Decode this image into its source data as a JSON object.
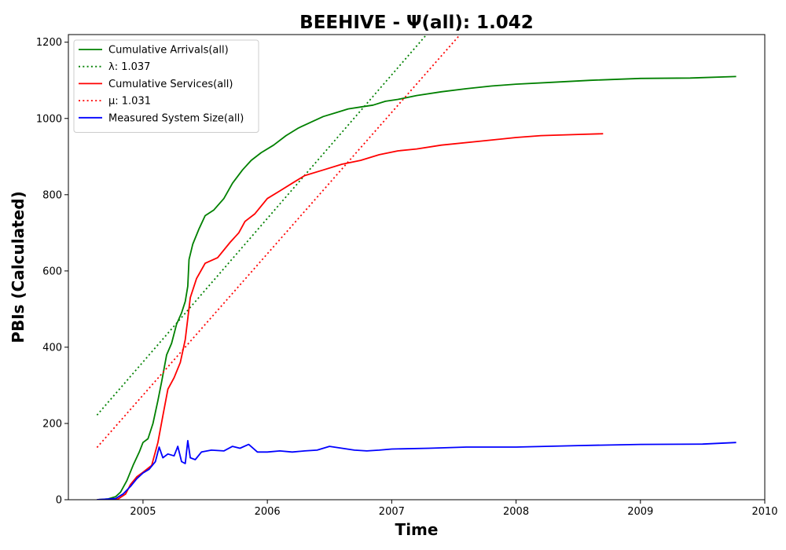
{
  "chart_data": {
    "type": "line",
    "title": "BEEHIVE -  Ψ(all): 1.042",
    "xlabel": "Time",
    "ylabel": "PBIs (Calculated)",
    "xlim": [
      2004.4,
      2010.0
    ],
    "ylim": [
      0,
      1220
    ],
    "xticks": [
      2005,
      2006,
      2007,
      2008,
      2009,
      2010
    ],
    "yticks": [
      0,
      200,
      400,
      600,
      800,
      1000,
      1200
    ],
    "grid": false,
    "legend_position": "top-left",
    "series": [
      {
        "name": "Cumulative Arrivals(all)",
        "color": "#008000",
        "style": "solid",
        "points": [
          [
            2004.63,
            0
          ],
          [
            2004.72,
            2
          ],
          [
            2004.78,
            8
          ],
          [
            2004.82,
            20
          ],
          [
            2004.87,
            50
          ],
          [
            2004.92,
            90
          ],
          [
            2004.97,
            125
          ],
          [
            2005.0,
            150
          ],
          [
            2005.04,
            160
          ],
          [
            2005.08,
            200
          ],
          [
            2005.12,
            260
          ],
          [
            2005.15,
            310
          ],
          [
            2005.19,
            380
          ],
          [
            2005.23,
            410
          ],
          [
            2005.27,
            460
          ],
          [
            2005.31,
            490
          ],
          [
            2005.34,
            520
          ],
          [
            2005.36,
            560
          ],
          [
            2005.37,
            630
          ],
          [
            2005.4,
            670
          ],
          [
            2005.45,
            710
          ],
          [
            2005.5,
            745
          ],
          [
            2005.57,
            760
          ],
          [
            2005.65,
            790
          ],
          [
            2005.72,
            830
          ],
          [
            2005.8,
            865
          ],
          [
            2005.87,
            890
          ],
          [
            2005.95,
            910
          ],
          [
            2006.05,
            930
          ],
          [
            2006.15,
            955
          ],
          [
            2006.25,
            975
          ],
          [
            2006.35,
            990
          ],
          [
            2006.45,
            1005
          ],
          [
            2006.55,
            1015
          ],
          [
            2006.65,
            1025
          ],
          [
            2006.75,
            1030
          ],
          [
            2006.85,
            1035
          ],
          [
            2006.95,
            1045
          ],
          [
            2007.05,
            1050
          ],
          [
            2007.2,
            1060
          ],
          [
            2007.4,
            1070
          ],
          [
            2007.6,
            1078
          ],
          [
            2007.8,
            1085
          ],
          [
            2008.0,
            1090
          ],
          [
            2008.3,
            1095
          ],
          [
            2008.6,
            1100
          ],
          [
            2009.0,
            1105
          ],
          [
            2009.4,
            1106
          ],
          [
            2009.77,
            1110
          ]
        ]
      },
      {
        "name": "λ: 1.037",
        "color": "#008000",
        "style": "dotted",
        "points": [
          [
            2004.63,
            222
          ],
          [
            2007.28,
            1220
          ]
        ]
      },
      {
        "name": "Cumulative Services(all)",
        "color": "#ff0000",
        "style": "solid",
        "points": [
          [
            2004.63,
            0
          ],
          [
            2004.8,
            2
          ],
          [
            2004.86,
            15
          ],
          [
            2004.9,
            40
          ],
          [
            2004.95,
            60
          ],
          [
            2005.0,
            72
          ],
          [
            2005.07,
            90
          ],
          [
            2005.12,
            150
          ],
          [
            2005.16,
            220
          ],
          [
            2005.2,
            290
          ],
          [
            2005.25,
            320
          ],
          [
            2005.3,
            360
          ],
          [
            2005.34,
            420
          ],
          [
            2005.38,
            530
          ],
          [
            2005.43,
            580
          ],
          [
            2005.5,
            620
          ],
          [
            2005.6,
            635
          ],
          [
            2005.7,
            675
          ],
          [
            2005.77,
            700
          ],
          [
            2005.82,
            730
          ],
          [
            2005.9,
            750
          ],
          [
            2006.0,
            790
          ],
          [
            2006.1,
            810
          ],
          [
            2006.2,
            830
          ],
          [
            2006.3,
            850
          ],
          [
            2006.45,
            865
          ],
          [
            2006.6,
            880
          ],
          [
            2006.75,
            890
          ],
          [
            2006.9,
            905
          ],
          [
            2007.05,
            915
          ],
          [
            2007.2,
            920
          ],
          [
            2007.4,
            930
          ],
          [
            2007.7,
            940
          ],
          [
            2008.0,
            950
          ],
          [
            2008.2,
            955
          ],
          [
            2008.5,
            958
          ],
          [
            2008.7,
            960
          ]
        ]
      },
      {
        "name": "μ: 1.031",
        "color": "#ff0000",
        "style": "dotted",
        "points": [
          [
            2004.63,
            137
          ],
          [
            2007.55,
            1220
          ]
        ]
      },
      {
        "name": "Measured System Size(all)",
        "color": "#0000ff",
        "style": "solid",
        "points": [
          [
            2004.63,
            0
          ],
          [
            2004.78,
            3
          ],
          [
            2004.84,
            15
          ],
          [
            2004.9,
            35
          ],
          [
            2004.95,
            55
          ],
          [
            2005.0,
            70
          ],
          [
            2005.05,
            80
          ],
          [
            2005.1,
            100
          ],
          [
            2005.13,
            138
          ],
          [
            2005.16,
            110
          ],
          [
            2005.2,
            120
          ],
          [
            2005.25,
            115
          ],
          [
            2005.28,
            140
          ],
          [
            2005.31,
            100
          ],
          [
            2005.34,
            95
          ],
          [
            2005.36,
            155
          ],
          [
            2005.38,
            110
          ],
          [
            2005.42,
            105
          ],
          [
            2005.47,
            125
          ],
          [
            2005.55,
            130
          ],
          [
            2005.65,
            128
          ],
          [
            2005.72,
            140
          ],
          [
            2005.78,
            135
          ],
          [
            2005.85,
            145
          ],
          [
            2005.92,
            125
          ],
          [
            2006.0,
            125
          ],
          [
            2006.1,
            128
          ],
          [
            2006.2,
            125
          ],
          [
            2006.3,
            128
          ],
          [
            2006.4,
            130
          ],
          [
            2006.5,
            140
          ],
          [
            2006.6,
            135
          ],
          [
            2006.7,
            130
          ],
          [
            2006.8,
            128
          ],
          [
            2006.9,
            130
          ],
          [
            2007.0,
            133
          ],
          [
            2007.3,
            135
          ],
          [
            2007.6,
            138
          ],
          [
            2008.0,
            138
          ],
          [
            2008.5,
            142
          ],
          [
            2009.0,
            145
          ],
          [
            2009.5,
            146
          ],
          [
            2009.77,
            150
          ]
        ]
      }
    ]
  }
}
